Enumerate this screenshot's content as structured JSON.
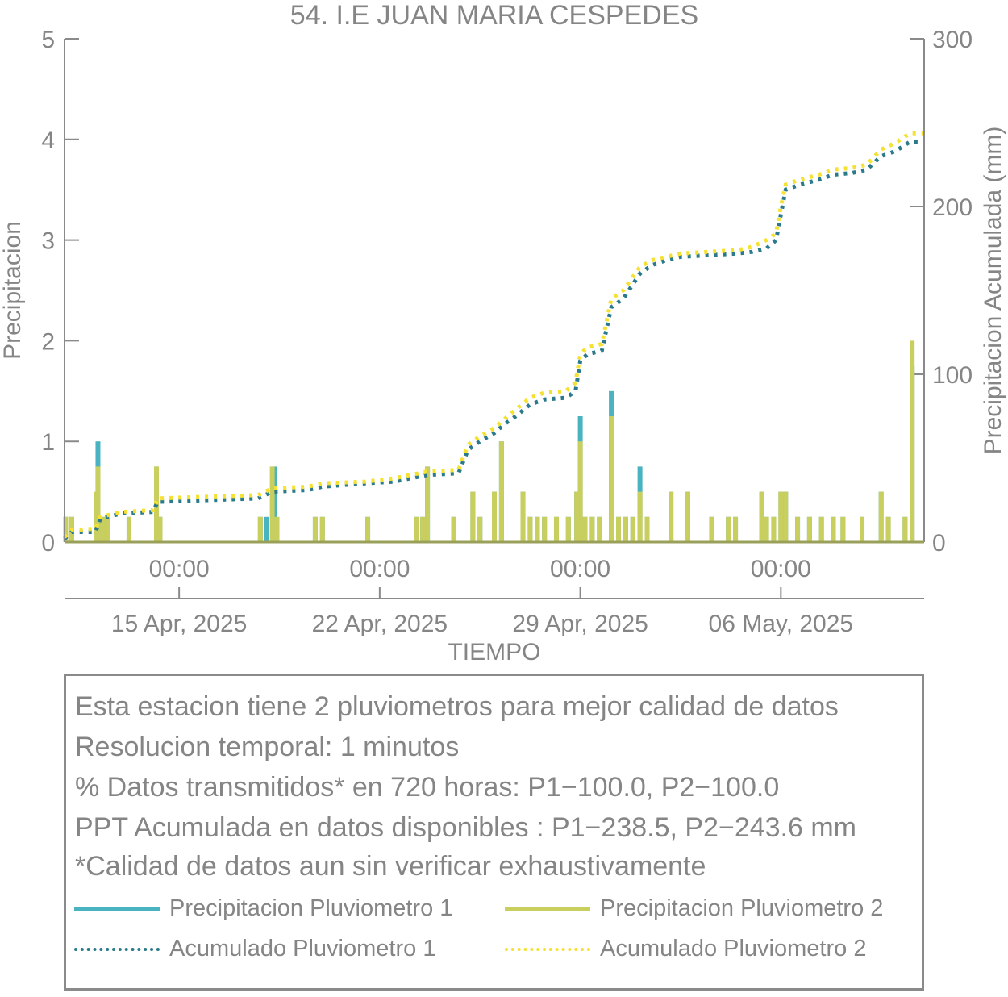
{
  "chart_data": {
    "type": "bar",
    "title": "54. I.E JUAN MARIA CESPEDES",
    "xlabel": "TIEMPO",
    "ylabel_left": "Precipitacion",
    "ylabel_right": "Precipitacion Acumulada (mm)",
    "x_range": [
      "2025-04-11T00:00",
      "2025-05-11T00:00"
    ],
    "ylim_left": [
      0,
      5
    ],
    "ylim_right": [
      0,
      300
    ],
    "yticks_left": [
      "0",
      "1",
      "2",
      "3",
      "4",
      "5"
    ],
    "yticks_right": [
      "0",
      "100",
      "200",
      "300"
    ],
    "xticks": [
      {
        "t": "2025-04-15T00:00",
        "time": "00:00",
        "date": "15 Apr, 2025"
      },
      {
        "t": "2025-04-22T00:00",
        "time": "00:00",
        "date": "22 Apr, 2025"
      },
      {
        "t": "2025-04-29T00:00",
        "time": "00:00",
        "date": "29 Apr, 2025"
      },
      {
        "t": "2025-05-06T00:00",
        "time": "00:00",
        "date": "06 May, 2025"
      }
    ],
    "grid": false,
    "series": [
      {
        "name": "Precipitacion Pluviometro 1",
        "type": "bar",
        "axis": "left",
        "color": "#4ab3c2",
        "points": [
          [
            "2025-04-11T01:00",
            0.25
          ],
          [
            "2025-04-11T06:00",
            0.25
          ],
          [
            "2025-04-12T03:00",
            0.25
          ],
          [
            "2025-04-12T04:00",
            1.0
          ],
          [
            "2025-04-12T08:00",
            0.25
          ],
          [
            "2025-04-12T12:00",
            0.25
          ],
          [
            "2025-04-13T06:00",
            0.25
          ],
          [
            "2025-04-14T05:00",
            0.75
          ],
          [
            "2025-04-14T08:00",
            0.25
          ],
          [
            "2025-04-17T20:00",
            0.25
          ],
          [
            "2025-04-18T01:00",
            0.25
          ],
          [
            "2025-04-18T08:00",
            0.75
          ],
          [
            "2025-04-19T18:00",
            0.25
          ],
          [
            "2025-04-20T00:00",
            0.25
          ],
          [
            "2025-04-21T14:00",
            0.25
          ],
          [
            "2025-04-23T07:00",
            0.25
          ],
          [
            "2025-04-23T12:00",
            0.25
          ],
          [
            "2025-04-23T16:00",
            0.75
          ],
          [
            "2025-04-24T14:00",
            0.25
          ],
          [
            "2025-04-25T06:00",
            0.5
          ],
          [
            "2025-04-25T12:00",
            0.25
          ],
          [
            "2025-04-26T00:00",
            0.5
          ],
          [
            "2025-04-26T06:00",
            1.0
          ],
          [
            "2025-04-27T00:00",
            0.5
          ],
          [
            "2025-04-27T06:00",
            0.25
          ],
          [
            "2025-04-27T12:00",
            0.25
          ],
          [
            "2025-04-27T18:00",
            0.25
          ],
          [
            "2025-04-28T04:00",
            0.25
          ],
          [
            "2025-04-28T14:00",
            0.25
          ],
          [
            "2025-04-28T21:00",
            0.5
          ],
          [
            "2025-04-29T00:00",
            1.25
          ],
          [
            "2025-04-29T04:00",
            0.25
          ],
          [
            "2025-04-29T10:00",
            0.25
          ],
          [
            "2025-04-29T16:00",
            0.25
          ],
          [
            "2025-04-30T02:00",
            1.5
          ],
          [
            "2025-04-30T08:00",
            0.25
          ],
          [
            "2025-04-30T14:00",
            0.25
          ],
          [
            "2025-04-30T20:00",
            0.25
          ],
          [
            "2025-05-01T02:00",
            0.75
          ],
          [
            "2025-05-01T08:00",
            0.25
          ],
          [
            "2025-05-02T04:00",
            0.5
          ],
          [
            "2025-05-02T18:00",
            0.5
          ],
          [
            "2025-05-03T14:00",
            0.25
          ],
          [
            "2025-05-04T04:00",
            0.25
          ],
          [
            "2025-05-04T10:00",
            0.25
          ],
          [
            "2025-05-05T08:00",
            0.5
          ],
          [
            "2025-05-05T12:00",
            0.25
          ],
          [
            "2025-05-05T18:00",
            0.25
          ],
          [
            "2025-05-06T00:00",
            0.5
          ],
          [
            "2025-05-06T04:00",
            0.5
          ],
          [
            "2025-05-06T14:00",
            0.25
          ],
          [
            "2025-05-07T00:00",
            0.25
          ],
          [
            "2025-05-07T10:00",
            0.25
          ],
          [
            "2025-05-07T20:00",
            0.25
          ],
          [
            "2025-05-08T04:00",
            0.25
          ],
          [
            "2025-05-08T20:00",
            0.25
          ],
          [
            "2025-05-09T12:00",
            0.5
          ],
          [
            "2025-05-09T18:00",
            0.25
          ],
          [
            "2025-05-10T08:00",
            0.25
          ],
          [
            "2025-05-10T14:00",
            1.75
          ]
        ]
      },
      {
        "name": "Precipitacion Pluviometro 2",
        "type": "bar",
        "axis": "left",
        "color": "#c8cf5f",
        "points": [
          [
            "2025-04-11T01:00",
            0.25
          ],
          [
            "2025-04-11T06:00",
            0.25
          ],
          [
            "2025-04-12T03:00",
            0.5
          ],
          [
            "2025-04-12T04:00",
            0.75
          ],
          [
            "2025-04-12T08:00",
            0.25
          ],
          [
            "2025-04-12T12:00",
            0.25
          ],
          [
            "2025-04-13T06:00",
            0.25
          ],
          [
            "2025-04-14T05:00",
            0.75
          ],
          [
            "2025-04-14T08:00",
            0.25
          ],
          [
            "2025-04-17T20:00",
            0.25
          ],
          [
            "2025-04-18T06:00",
            0.75
          ],
          [
            "2025-04-18T10:00",
            0.25
          ],
          [
            "2025-04-19T18:00",
            0.25
          ],
          [
            "2025-04-20T00:00",
            0.25
          ],
          [
            "2025-04-21T14:00",
            0.25
          ],
          [
            "2025-04-23T07:00",
            0.25
          ],
          [
            "2025-04-23T12:00",
            0.25
          ],
          [
            "2025-04-23T16:00",
            0.75
          ],
          [
            "2025-04-24T14:00",
            0.25
          ],
          [
            "2025-04-25T06:00",
            0.5
          ],
          [
            "2025-04-25T12:00",
            0.25
          ],
          [
            "2025-04-26T00:00",
            0.5
          ],
          [
            "2025-04-26T06:00",
            1.0
          ],
          [
            "2025-04-27T00:00",
            0.5
          ],
          [
            "2025-04-27T06:00",
            0.25
          ],
          [
            "2025-04-27T12:00",
            0.25
          ],
          [
            "2025-04-27T18:00",
            0.25
          ],
          [
            "2025-04-28T04:00",
            0.25
          ],
          [
            "2025-04-28T14:00",
            0.25
          ],
          [
            "2025-04-28T21:00",
            0.5
          ],
          [
            "2025-04-29T00:00",
            1.0
          ],
          [
            "2025-04-29T04:00",
            0.25
          ],
          [
            "2025-04-29T10:00",
            0.25
          ],
          [
            "2025-04-29T16:00",
            0.25
          ],
          [
            "2025-04-30T02:00",
            1.25
          ],
          [
            "2025-04-30T08:00",
            0.25
          ],
          [
            "2025-04-30T14:00",
            0.25
          ],
          [
            "2025-04-30T20:00",
            0.25
          ],
          [
            "2025-05-01T02:00",
            0.5
          ],
          [
            "2025-05-01T08:00",
            0.25
          ],
          [
            "2025-05-02T04:00",
            0.5
          ],
          [
            "2025-05-02T18:00",
            0.5
          ],
          [
            "2025-05-03T14:00",
            0.25
          ],
          [
            "2025-05-04T04:00",
            0.25
          ],
          [
            "2025-05-04T10:00",
            0.25
          ],
          [
            "2025-05-05T08:00",
            0.5
          ],
          [
            "2025-05-05T12:00",
            0.25
          ],
          [
            "2025-05-05T18:00",
            0.25
          ],
          [
            "2025-05-06T00:00",
            0.5
          ],
          [
            "2025-05-06T04:00",
            0.5
          ],
          [
            "2025-05-06T14:00",
            0.25
          ],
          [
            "2025-05-07T00:00",
            0.25
          ],
          [
            "2025-05-07T10:00",
            0.25
          ],
          [
            "2025-05-07T20:00",
            0.25
          ],
          [
            "2025-05-08T04:00",
            0.25
          ],
          [
            "2025-05-08T20:00",
            0.25
          ],
          [
            "2025-05-09T12:00",
            0.5
          ],
          [
            "2025-05-09T18:00",
            0.25
          ],
          [
            "2025-05-10T08:00",
            0.25
          ],
          [
            "2025-05-10T14:00",
            2.0
          ]
        ]
      },
      {
        "name": "Acumulado Pluviometro 1",
        "type": "step-line",
        "axis": "right",
        "color": "#2a7a8c",
        "dotted": true,
        "points": [
          [
            "2025-04-11T00:00",
            2
          ],
          [
            "2025-04-11T06:00",
            6
          ],
          [
            "2025-04-12T02:00",
            6
          ],
          [
            "2025-04-12T06:00",
            14
          ],
          [
            "2025-04-13T00:00",
            17
          ],
          [
            "2025-04-14T02:00",
            18
          ],
          [
            "2025-04-14T06:00",
            24
          ],
          [
            "2025-04-16T00:00",
            25
          ],
          [
            "2025-04-17T18:00",
            26
          ],
          [
            "2025-04-18T06:00",
            30
          ],
          [
            "2025-04-19T12:00",
            31
          ],
          [
            "2025-04-20T00:00",
            33
          ],
          [
            "2025-04-21T12:00",
            35
          ],
          [
            "2025-04-22T12:00",
            36
          ],
          [
            "2025-04-23T16:00",
            40
          ],
          [
            "2025-04-24T18:00",
            41
          ],
          [
            "2025-04-25T02:00",
            55
          ],
          [
            "2025-04-25T12:00",
            60
          ],
          [
            "2025-04-26T00:00",
            65
          ],
          [
            "2025-04-26T08:00",
            70
          ],
          [
            "2025-04-26T18:00",
            75
          ],
          [
            "2025-04-27T06:00",
            82
          ],
          [
            "2025-04-27T18:00",
            85
          ],
          [
            "2025-04-28T12:00",
            86
          ],
          [
            "2025-04-28T20:00",
            90
          ],
          [
            "2025-04-29T00:00",
            108
          ],
          [
            "2025-04-29T06:00",
            112
          ],
          [
            "2025-04-29T18:00",
            114
          ],
          [
            "2025-04-30T02:00",
            140
          ],
          [
            "2025-04-30T12:00",
            145
          ],
          [
            "2025-05-01T02:00",
            160
          ],
          [
            "2025-05-01T12:00",
            165
          ],
          [
            "2025-05-02T00:00",
            168
          ],
          [
            "2025-05-02T12:00",
            170
          ],
          [
            "2025-05-03T12:00",
            171
          ],
          [
            "2025-05-04T12:00",
            172
          ],
          [
            "2025-05-05T00:00",
            173
          ],
          [
            "2025-05-05T12:00",
            175
          ],
          [
            "2025-05-05T20:00",
            180
          ],
          [
            "2025-05-06T00:00",
            195
          ],
          [
            "2025-05-06T04:00",
            210
          ],
          [
            "2025-05-06T16:00",
            213
          ],
          [
            "2025-05-07T08:00",
            216
          ],
          [
            "2025-05-07T20:00",
            219
          ],
          [
            "2025-05-08T12:00",
            220
          ],
          [
            "2025-05-09T00:00",
            222
          ],
          [
            "2025-05-09T12:00",
            230
          ],
          [
            "2025-05-10T00:00",
            233
          ],
          [
            "2025-05-10T12:00",
            238.5
          ],
          [
            "2025-05-11T00:00",
            238.5
          ]
        ]
      },
      {
        "name": "Acumulado Pluviometro 2",
        "type": "step-line",
        "axis": "right",
        "color": "#f5e132",
        "dotted": true,
        "points": [
          [
            "2025-04-11T00:00",
            3
          ],
          [
            "2025-04-11T06:00",
            7
          ],
          [
            "2025-04-12T02:00",
            8
          ],
          [
            "2025-04-12T06:00",
            15
          ],
          [
            "2025-04-13T00:00",
            18
          ],
          [
            "2025-04-14T02:00",
            19
          ],
          [
            "2025-04-14T06:00",
            26
          ],
          [
            "2025-04-16T00:00",
            27
          ],
          [
            "2025-04-17T18:00",
            28
          ],
          [
            "2025-04-18T06:00",
            32
          ],
          [
            "2025-04-19T12:00",
            33
          ],
          [
            "2025-04-20T00:00",
            35
          ],
          [
            "2025-04-21T12:00",
            36
          ],
          [
            "2025-04-22T12:00",
            38
          ],
          [
            "2025-04-23T16:00",
            42
          ],
          [
            "2025-04-24T18:00",
            43
          ],
          [
            "2025-04-25T02:00",
            58
          ],
          [
            "2025-04-25T12:00",
            63
          ],
          [
            "2025-04-26T00:00",
            68
          ],
          [
            "2025-04-26T08:00",
            73
          ],
          [
            "2025-04-26T18:00",
            79
          ],
          [
            "2025-04-27T06:00",
            86
          ],
          [
            "2025-04-27T18:00",
            89
          ],
          [
            "2025-04-28T12:00",
            90
          ],
          [
            "2025-04-28T20:00",
            95
          ],
          [
            "2025-04-29T00:00",
            112
          ],
          [
            "2025-04-29T06:00",
            116
          ],
          [
            "2025-04-29T18:00",
            118
          ],
          [
            "2025-04-30T02:00",
            145
          ],
          [
            "2025-04-30T12:00",
            150
          ],
          [
            "2025-05-01T02:00",
            164
          ],
          [
            "2025-05-01T12:00",
            168
          ],
          [
            "2025-05-02T00:00",
            170
          ],
          [
            "2025-05-02T12:00",
            172
          ],
          [
            "2025-05-03T12:00",
            173
          ],
          [
            "2025-05-04T12:00",
            174
          ],
          [
            "2025-05-05T00:00",
            176
          ],
          [
            "2025-05-05T12:00",
            180
          ],
          [
            "2025-05-05T20:00",
            184
          ],
          [
            "2025-05-06T00:00",
            200
          ],
          [
            "2025-05-06T04:00",
            213
          ],
          [
            "2025-05-06T16:00",
            216
          ],
          [
            "2025-05-07T08:00",
            219
          ],
          [
            "2025-05-07T20:00",
            222
          ],
          [
            "2025-05-08T12:00",
            223
          ],
          [
            "2025-05-09T00:00",
            225
          ],
          [
            "2025-05-09T12:00",
            234
          ],
          [
            "2025-05-10T00:00",
            238
          ],
          [
            "2025-05-10T12:00",
            243.6
          ],
          [
            "2025-05-11T00:00",
            243.6
          ]
        ]
      }
    ]
  },
  "info": {
    "lines": [
      "Esta estacion tiene 2 pluviometros para mejor calidad de datos",
      "Resolucion temporal: 1 minutos",
      "% Datos transmitidos* en 720 horas: P1−100.0, P2−100.0",
      "PPT Acumulada en datos disponibles : P1−238.5, P2−243.6 mm",
      "*Calidad de datos aun sin verificar exhaustivamente"
    ]
  },
  "legend": {
    "items": [
      {
        "label": "Precipitacion Pluviometro 1",
        "color": "#4ab3c2",
        "style": "solid"
      },
      {
        "label": "Precipitacion Pluviometro 2",
        "color": "#c8cf5f",
        "style": "solid"
      },
      {
        "label": "Acumulado Pluviometro 1",
        "color": "#2a7a8c",
        "style": "dotted"
      },
      {
        "label": "Acumulado Pluviometro 2",
        "color": "#f5e132",
        "style": "dotted"
      }
    ]
  }
}
